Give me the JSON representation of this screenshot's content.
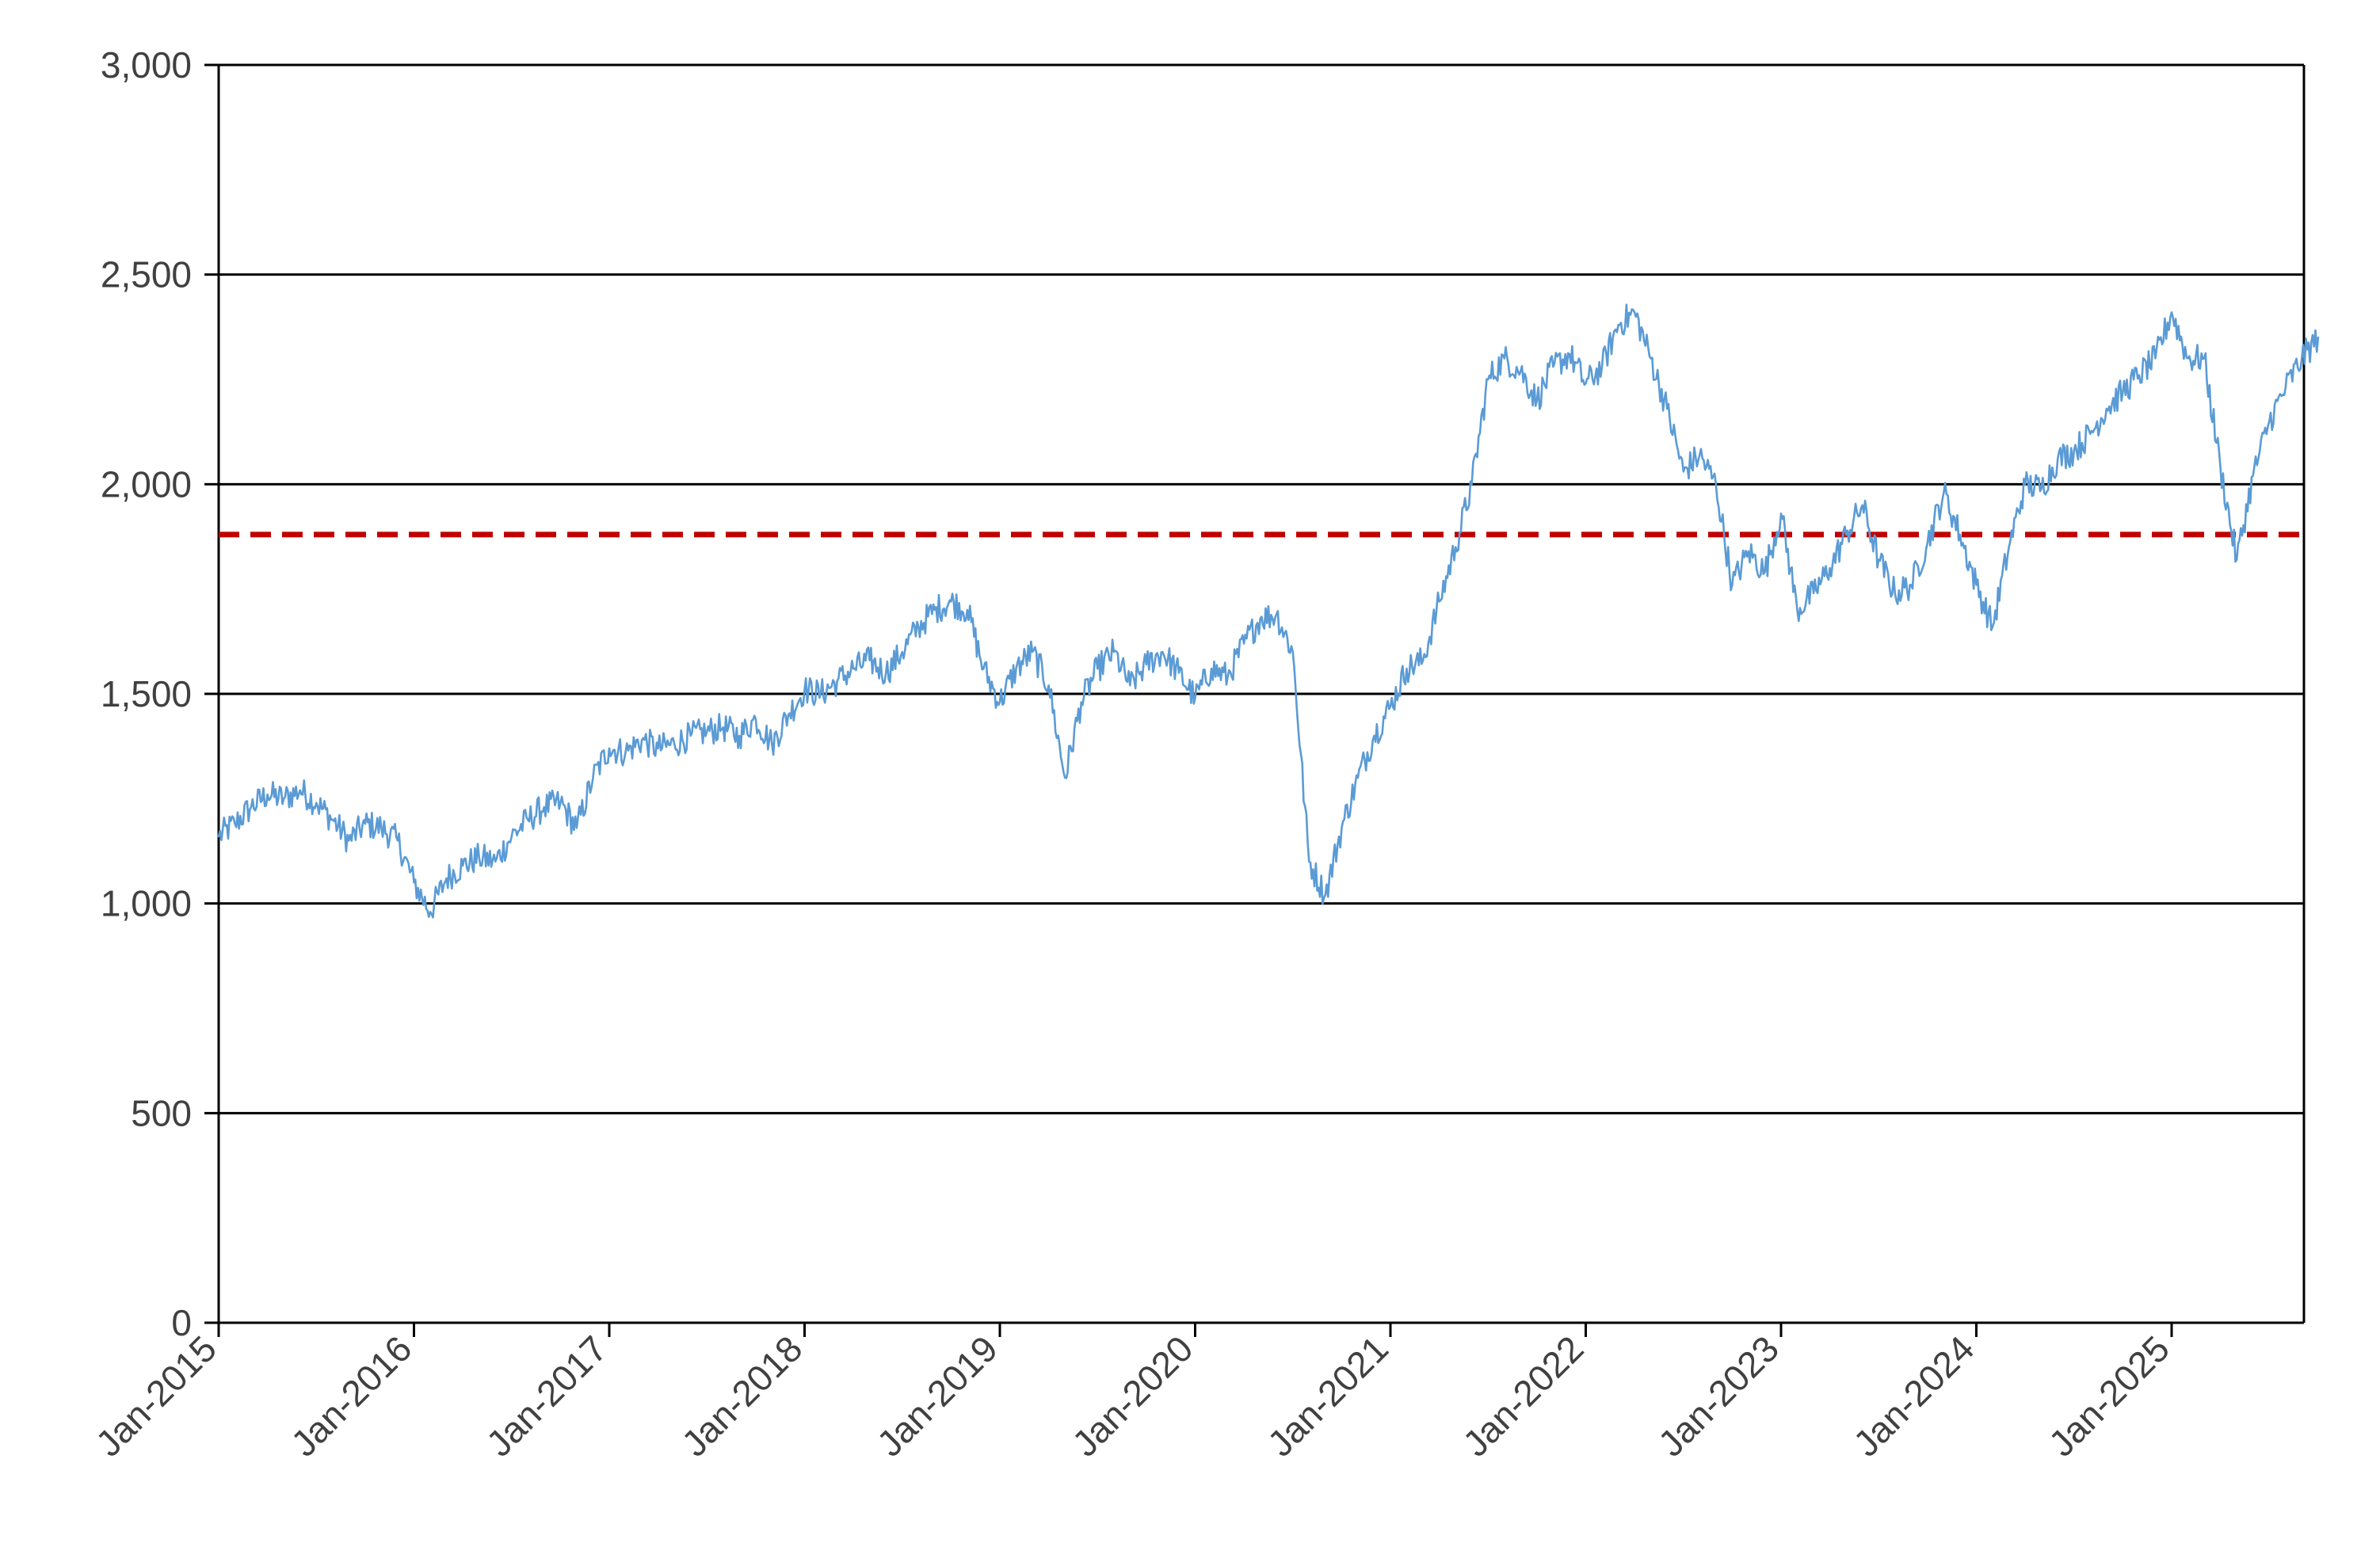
{
  "chart_data": {
    "type": "line",
    "title": "",
    "xlabel": "",
    "ylabel": "",
    "ylim": [
      0,
      3000
    ],
    "y_ticks": [
      0,
      500,
      1000,
      1500,
      2000,
      2500,
      3000
    ],
    "y_tick_labels": [
      "0",
      "500",
      "1,000",
      "1,500",
      "2,000",
      "2,500",
      "3,000"
    ],
    "x_tick_labels": [
      "Jan-2015",
      "Jan-2016",
      "Jan-2017",
      "Jan-2018",
      "Jan-2019",
      "Jan-2020",
      "Jan-2021",
      "Jan-2022",
      "Jan-2023",
      "Jan-2024",
      "Jan-2025"
    ],
    "x_range": [
      "2015-01",
      "2025-10"
    ],
    "grid": "horizontal",
    "legend": "none",
    "series": [
      {
        "color": "#5b9bd5",
        "points": [
          [
            "2015-01",
            1160
          ],
          [
            "2015-02",
            1190
          ],
          [
            "2015-03",
            1230
          ],
          [
            "2015-04",
            1260
          ],
          [
            "2015-05",
            1250
          ],
          [
            "2015-06",
            1270
          ],
          [
            "2015-07",
            1240
          ],
          [
            "2015-08",
            1200
          ],
          [
            "2015-09",
            1150
          ],
          [
            "2015-10",
            1190
          ],
          [
            "2015-11",
            1180
          ],
          [
            "2015-12",
            1150
          ],
          [
            "2016-01",
            1050
          ],
          [
            "2016-02",
            980
          ],
          [
            "2016-03",
            1060
          ],
          [
            "2016-04",
            1090
          ],
          [
            "2016-05",
            1110
          ],
          [
            "2016-06",
            1100
          ],
          [
            "2016-07",
            1160
          ],
          [
            "2016-08",
            1200
          ],
          [
            "2016-09",
            1230
          ],
          [
            "2016-10",
            1240
          ],
          [
            "2016-11",
            1180
          ],
          [
            "2016-12",
            1300
          ],
          [
            "2017-01",
            1370
          ],
          [
            "2017-02",
            1360
          ],
          [
            "2017-03",
            1390
          ],
          [
            "2017-04",
            1370
          ],
          [
            "2017-05",
            1380
          ],
          [
            "2017-06",
            1400
          ],
          [
            "2017-07",
            1410
          ],
          [
            "2017-08",
            1420
          ],
          [
            "2017-09",
            1400
          ],
          [
            "2017-10",
            1440
          ],
          [
            "2017-11",
            1380
          ],
          [
            "2017-12",
            1450
          ],
          [
            "2018-01",
            1510
          ],
          [
            "2018-02",
            1500
          ],
          [
            "2018-03",
            1530
          ],
          [
            "2018-04",
            1560
          ],
          [
            "2018-05",
            1580
          ],
          [
            "2018-06",
            1550
          ],
          [
            "2018-07",
            1600
          ],
          [
            "2018-08",
            1660
          ],
          [
            "2018-09",
            1700
          ],
          [
            "2018-10",
            1720
          ],
          [
            "2018-11",
            1700
          ],
          [
            "2018-12",
            1560
          ],
          [
            "2019-01",
            1480
          ],
          [
            "2019-02",
            1560
          ],
          [
            "2019-03",
            1600
          ],
          [
            "2019-04",
            1520
          ],
          [
            "2019-05",
            1300
          ],
          [
            "2019-06",
            1480
          ],
          [
            "2019-07",
            1560
          ],
          [
            "2019-08",
            1600
          ],
          [
            "2019-09",
            1520
          ],
          [
            "2019-10",
            1570
          ],
          [
            "2019-11",
            1600
          ],
          [
            "2019-12",
            1550
          ],
          [
            "2020-01",
            1490
          ],
          [
            "2020-02",
            1560
          ],
          [
            "2020-03",
            1540
          ],
          [
            "2020-04",
            1620
          ],
          [
            "2020-05",
            1680
          ],
          [
            "2020-06",
            1690
          ],
          [
            "2020-07",
            1600
          ],
          [
            "2020-08",
            1100
          ],
          [
            "2020-09",
            1020
          ],
          [
            "2020-10",
            1180
          ],
          [
            "2020-11",
            1300
          ],
          [
            "2020-12",
            1400
          ],
          [
            "2021-01",
            1470
          ],
          [
            "2021-02",
            1560
          ],
          [
            "2021-03",
            1580
          ],
          [
            "2021-04",
            1720
          ],
          [
            "2021-05",
            1850
          ],
          [
            "2021-06",
            2000
          ],
          [
            "2021-07",
            2250
          ],
          [
            "2021-08",
            2300
          ],
          [
            "2021-09",
            2270
          ],
          [
            "2021-10",
            2200
          ],
          [
            "2021-11",
            2280
          ],
          [
            "2021-12",
            2310
          ],
          [
            "2022-01",
            2240
          ],
          [
            "2022-02",
            2280
          ],
          [
            "2022-03",
            2380
          ],
          [
            "2022-04",
            2410
          ],
          [
            "2022-05",
            2300
          ],
          [
            "2022-06",
            2180
          ],
          [
            "2022-07",
            2030
          ],
          [
            "2022-08",
            2070
          ],
          [
            "2022-09",
            2000
          ],
          [
            "2022-10",
            1760
          ],
          [
            "2022-11",
            1840
          ],
          [
            "2022-12",
            1790
          ],
          [
            "2023-01",
            1930
          ],
          [
            "2023-02",
            1700
          ],
          [
            "2023-03",
            1740
          ],
          [
            "2023-04",
            1800
          ],
          [
            "2023-05",
            1880
          ],
          [
            "2023-06",
            1950
          ],
          [
            "2023-07",
            1820
          ],
          [
            "2023-08",
            1740
          ],
          [
            "2023-09",
            1760
          ],
          [
            "2023-10",
            1860
          ],
          [
            "2023-11",
            1980
          ],
          [
            "2023-12",
            1880
          ],
          [
            "2024-01",
            1760
          ],
          [
            "2024-02",
            1660
          ],
          [
            "2024-03",
            1850
          ],
          [
            "2024-04",
            2000
          ],
          [
            "2024-05",
            1990
          ],
          [
            "2024-06",
            2060
          ],
          [
            "2024-07",
            2080
          ],
          [
            "2024-08",
            2120
          ],
          [
            "2024-09",
            2180
          ],
          [
            "2024-10",
            2220
          ],
          [
            "2024-11",
            2260
          ],
          [
            "2024-12",
            2300
          ],
          [
            "2025-01",
            2410
          ],
          [
            "2025-02",
            2300
          ],
          [
            "2025-03",
            2300
          ],
          [
            "2025-04",
            2040
          ],
          [
            "2025-05",
            1820
          ],
          [
            "2025-06",
            2020
          ],
          [
            "2025-07",
            2150
          ],
          [
            "2025-08",
            2230
          ],
          [
            "2025-09",
            2300
          ],
          [
            "2025-10",
            2350
          ]
        ]
      }
    ],
    "reference_line": {
      "y": 1880,
      "color": "#c00000",
      "style": "dashed"
    }
  }
}
